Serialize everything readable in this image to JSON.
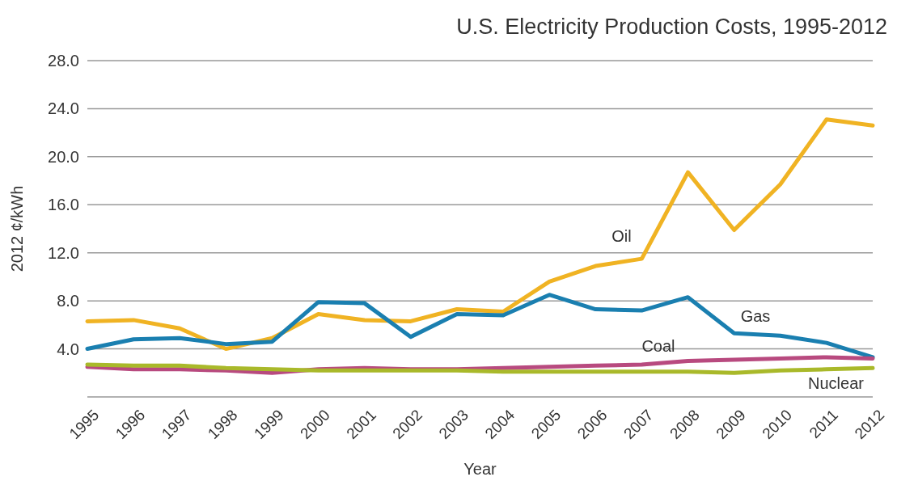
{
  "chart_data": {
    "type": "line",
    "title": "U.S. Electricity Production Costs, 1995-2012",
    "xlabel": "Year",
    "ylabel": "2012 ¢/kWh",
    "categories": [
      "1995",
      "1996",
      "1997",
      "1998",
      "1999",
      "2000",
      "2001",
      "2002",
      "2003",
      "2004",
      "2005",
      "2006",
      "2007",
      "2008",
      "2009",
      "2010",
      "2011",
      "2012"
    ],
    "ylim": [
      0,
      28
    ],
    "yticks": [
      {
        "value": 0,
        "label": null
      },
      {
        "value": 4,
        "label": "4.0"
      },
      {
        "value": 8,
        "label": "8.0"
      },
      {
        "value": 12,
        "label": "12.0"
      },
      {
        "value": 16,
        "label": "16.0"
      },
      {
        "value": 20,
        "label": "20.0"
      },
      {
        "value": 24,
        "label": "24.0"
      },
      {
        "value": 28,
        "label": "28.0"
      }
    ],
    "grid": "y",
    "marker": "none",
    "line_style": "solid",
    "series": [
      {
        "name": "Oil",
        "color": "#f0b323",
        "values": [
          6.3,
          6.4,
          5.7,
          4.0,
          4.9,
          6.9,
          6.4,
          6.3,
          7.3,
          7.1,
          9.6,
          10.9,
          11.5,
          18.7,
          13.9,
          17.7,
          23.1,
          22.6
        ]
      },
      {
        "name": "Gas",
        "color": "#1a7fb0",
        "values": [
          4.0,
          4.8,
          4.9,
          4.4,
          4.6,
          7.9,
          7.8,
          5.0,
          6.9,
          6.8,
          8.5,
          7.3,
          7.2,
          8.3,
          5.3,
          5.1,
          4.5,
          3.3
        ]
      },
      {
        "name": "Coal",
        "color": "#b84a7f",
        "values": [
          2.5,
          2.3,
          2.3,
          2.2,
          2.0,
          2.3,
          2.4,
          2.3,
          2.3,
          2.4,
          2.5,
          2.6,
          2.7,
          3.0,
          3.1,
          3.2,
          3.3,
          3.2
        ]
      },
      {
        "name": "Nuclear",
        "color": "#a9b92a",
        "values": [
          2.7,
          2.6,
          2.6,
          2.4,
          2.3,
          2.2,
          2.2,
          2.2,
          2.2,
          2.1,
          2.1,
          2.1,
          2.1,
          2.1,
          2.0,
          2.2,
          2.3,
          2.4
        ]
      }
    ]
  }
}
